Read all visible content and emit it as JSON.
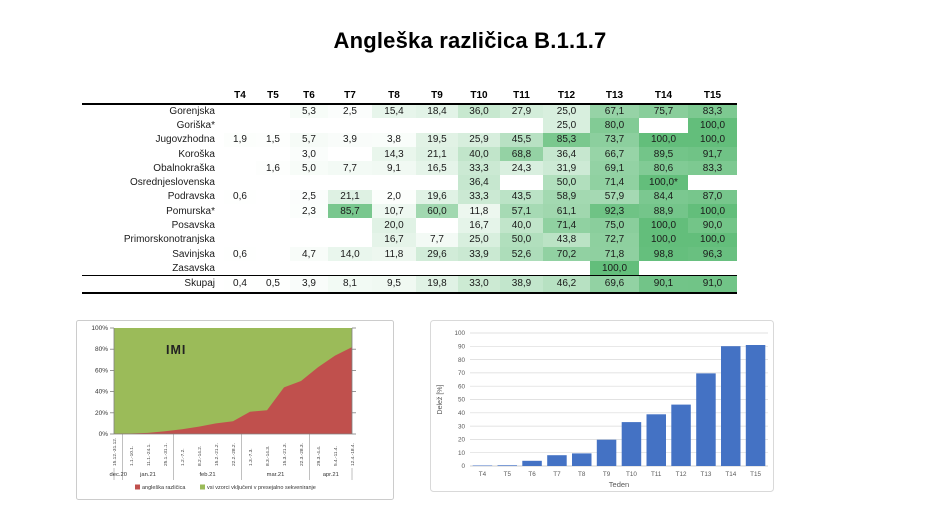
{
  "title": "Angleška različica B.1.1.7",
  "table": {
    "columns": [
      "T4",
      "T5",
      "T6",
      "T7",
      "T8",
      "T9",
      "T10",
      "T11",
      "T12",
      "T13",
      "T14",
      "T15"
    ],
    "rows": [
      {
        "label": "Gorenjska",
        "values": [
          "",
          "",
          "5,3",
          "2,5",
          "15,4",
          "18,4",
          "36,0",
          "27,9",
          "25,0",
          "67,1",
          "75,7",
          "83,3"
        ]
      },
      {
        "label": "Goriška*",
        "values": [
          "",
          "",
          "",
          "",
          "",
          "",
          "",
          "",
          "25,0",
          "80,0",
          "",
          "100,0"
        ]
      },
      {
        "label": "Jugovzhodna",
        "values": [
          "1,9",
          "1,5",
          "5,7",
          "3,9",
          "3,8",
          "19,5",
          "25,9",
          "45,5",
          "85,3",
          "73,7",
          "100,0",
          "100,0"
        ]
      },
      {
        "label": "Koroška",
        "values": [
          "",
          "",
          "3,0",
          "",
          "14,3",
          "21,1",
          "40,0",
          "68,8",
          "36,4",
          "66,7",
          "89,5",
          "91,7"
        ]
      },
      {
        "label": "Obalnokraška",
        "values": [
          "",
          "1,6",
          "5,0",
          "7,7",
          "9,1",
          "16,5",
          "33,3",
          "24,3",
          "31,9",
          "69,1",
          "80,6",
          "83,3"
        ]
      },
      {
        "label": "Osrednjeslovenska",
        "values": [
          "",
          "",
          "",
          "",
          "",
          "",
          "36,4",
          "",
          "50,0",
          "71,4",
          "100,0*",
          ""
        ]
      },
      {
        "label": "Podravska",
        "values": [
          "0,6",
          "",
          "2,5",
          "21,1",
          "2,0",
          "19,6",
          "33,3",
          "43,5",
          "58,9",
          "57,9",
          "84,4",
          "87,0"
        ]
      },
      {
        "label": "Pomurska*",
        "values": [
          "",
          "",
          "2,3",
          "85,7",
          "10,7",
          "60,0",
          "11,8",
          "57,1",
          "61,1",
          "92,3",
          "88,9",
          "100,0"
        ]
      },
      {
        "label": "Posavska",
        "values": [
          "",
          "",
          "",
          "",
          "20,0",
          "",
          "16,7",
          "40,0",
          "71,4",
          "75,0",
          "100,0",
          "90,0"
        ]
      },
      {
        "label": "Primorskonotranjska",
        "values": [
          "",
          "",
          "",
          "",
          "16,7",
          "7,7",
          "25,0",
          "50,0",
          "43,8",
          "72,7",
          "100,0",
          "100,0"
        ]
      },
      {
        "label": "Savinjska",
        "values": [
          "0,6",
          "",
          "4,7",
          "14,0",
          "11,8",
          "29,6",
          "33,9",
          "52,6",
          "70,2",
          "71,8",
          "98,8",
          "96,3"
        ]
      },
      {
        "label": "Zasavska",
        "values": [
          "",
          "",
          "",
          "",
          "",
          "",
          "",
          "",
          "",
          "100,0",
          "",
          ""
        ]
      }
    ],
    "total_row": {
      "label": "Skupaj",
      "values": [
        "0,4",
        "0,5",
        "3,9",
        "8,1",
        "9,5",
        "19,8",
        "33,0",
        "38,9",
        "46,2",
        "69,6",
        "90,1",
        "91,0"
      ]
    },
    "color_scale": {
      "min_color": "#FFFFFF",
      "max_color": "#63BE7B",
      "min": 0,
      "max": 100
    }
  },
  "chart_data": [
    {
      "type": "area",
      "title": "IMI",
      "stacked_percent": true,
      "x": [
        "15.12.-31.12.",
        "1.1.-10.1.",
        "11.1.-24.1.",
        "25.1.-31.1.",
        "1.2.-7.2.",
        "8.2.-14.2.",
        "15.2.-21.2.",
        "22.2.-28.2.",
        "1.3.-7.3.",
        "8.3.-14.3.",
        "15.3.-21.3.",
        "22.3.-28.3.",
        "29.3.-4.4.",
        "5.4.-11.4.",
        "12.4.-18.4."
      ],
      "x_groups": [
        {
          "label": "dec.20",
          "count": 1
        },
        {
          "label": "jan.21",
          "count": 3
        },
        {
          "label": "feb.21",
          "count": 4
        },
        {
          "label": "mar.21",
          "count": 4
        },
        {
          "label": "apr.21",
          "count": 3
        }
      ],
      "series": [
        {
          "name": "angleška različica",
          "color": "#C0504D",
          "values": [
            0.2,
            0.5,
            1.0,
            2.5,
            4.5,
            7.0,
            10.0,
            12.0,
            21.0,
            22.5,
            44.0,
            50.0,
            63.0,
            74.0,
            82.0
          ]
        },
        {
          "name": "vsi vzorci vključeni v presejalno sekveniranje",
          "color": "#9BBB59",
          "values": [
            99.8,
            99.5,
            99.0,
            97.5,
            95.5,
            93.0,
            90.0,
            88.0,
            79.0,
            77.5,
            56.0,
            50.0,
            37.0,
            26.0,
            18.0
          ]
        }
      ],
      "ylim": [
        0,
        100
      ],
      "yticks": [
        "0%",
        "20%",
        "40%",
        "60%",
        "80%",
        "100%"
      ],
      "legend_position": "bottom"
    },
    {
      "type": "bar",
      "categories": [
        "T4",
        "T5",
        "T6",
        "T7",
        "T8",
        "T9",
        "T10",
        "T11",
        "T12",
        "T13",
        "T14",
        "T15"
      ],
      "values": [
        0.4,
        0.5,
        3.9,
        8.1,
        9.5,
        19.8,
        33.0,
        38.9,
        46.2,
        69.6,
        90.1,
        91.0
      ],
      "title": "",
      "xlabel": "Teden",
      "ylabel": "Delež [%]",
      "ylim": [
        0,
        100
      ],
      "ytick_step": 10,
      "grid": true,
      "bar_color": "#4472C4"
    }
  ],
  "colors": {
    "table_green": "#63BE7B",
    "area_red": "#C0504D",
    "area_green": "#9BBB59",
    "bar_blue": "#4472C4",
    "axis_text": "#595959",
    "gridline": "#D9D9D9"
  }
}
